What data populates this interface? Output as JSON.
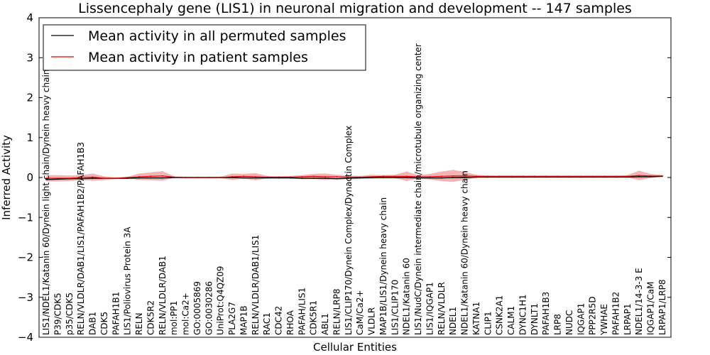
{
  "chart_data": {
    "type": "line",
    "title": "Lissencephaly gene (LIS1) in neuronal migration and development -- 147 samples",
    "xlabel": "Cellular Entities",
    "ylabel": "Inferred Activity",
    "ylim": [
      -4,
      4
    ],
    "yticks": [
      -4,
      -3,
      -2,
      -1,
      0,
      1,
      2,
      3,
      4
    ],
    "ytick_labels": [
      "−4",
      "−3",
      "−2",
      "−1",
      "0",
      "1",
      "2",
      "3",
      "4"
    ],
    "legend_position": "top-left",
    "colors": {
      "permuted": "#000000",
      "patient": "#e00000",
      "band": "#f08080",
      "grey_band": "#bbbbbb"
    },
    "categories": [
      "LIS1/NDEL1/Katanin 60/Dynein light chain/Dynein heavy chain",
      "P39/CDK5",
      "p35/CDK5",
      "RELN/VLDLR/DAB1/LIS1/PAFAH1B2/PAFAH1B3",
      "DAB1",
      "CDK5",
      "PAFAH1B1",
      "LIS1/Poliovirus Protein 3A",
      "RELN",
      "CDK5R2",
      "RELN/VLDLR/DAB1",
      "mol:PP1",
      "mol:Ca2+",
      "GO:0005869",
      "GO:0030286",
      "UniProt:Q4QZ09",
      "PLA2G7",
      "MAP1B",
      "RELN/VLDLR/DAB1/LIS1",
      "RAC1",
      "CDC42",
      "RHOA",
      "PAFAH/LIS1",
      "CDK5R1",
      "ABL1",
      "RELN/LRP8",
      "LIS1/CLIP170/Dynein Complex/Dynactin Complex",
      "CaM/Ca2+",
      "VLDLR",
      "MAP1B/LIS1/Dynein heavy chain",
      "LIS1/CLIP170",
      "NDEL1/Katanin 60",
      "LIS1/NudC/Dynein intermediate chain/microtubule organizing center",
      "LIS1/IQGAP1",
      "RELN/VLDLR",
      "NDEL1",
      "NDEL1/Katanin 60/Dynein heavy chain",
      "KATNA1",
      "CLIP1",
      "CSNK2A1",
      "CALM1",
      "DYNC1H1",
      "DYNLT1",
      "PAFAH1B3",
      "LRP8",
      "NUDC",
      "IQGAP1",
      "PPP2R5D",
      "YWHAE",
      "PAFAH1B2",
      "LRPAP1",
      "NDEL1/14-3-3 E",
      "IQGAP1/CaM",
      "LRPAP1/LRP8"
    ],
    "series": [
      {
        "name": "Mean activity in all permuted samples",
        "color": "#000000",
        "values": [
          -0.05,
          -0.04,
          -0.03,
          -0.03,
          -0.02,
          -0.02,
          -0.02,
          -0.02,
          -0.01,
          -0.01,
          -0.01,
          0,
          0,
          0,
          0,
          0,
          0,
          -0.01,
          -0.01,
          -0.01,
          -0.01,
          -0.01,
          -0.02,
          -0.02,
          -0.02,
          -0.03,
          -0.02,
          -0.01,
          0,
          0,
          0,
          0,
          -0.01,
          -0.01,
          -0.01,
          0,
          0,
          0.01,
          0.01,
          0.01,
          0.01,
          0.01,
          0.01,
          0.01,
          0.01,
          0.01,
          0.01,
          0.01,
          0.01,
          0.01,
          0.01,
          0.02,
          0.02,
          0.03
        ],
        "band": [
          0.03,
          0.03,
          0.03,
          0.03,
          0.02,
          0.02,
          0.02,
          0.02,
          0.02,
          0.02,
          0.02,
          0.02,
          0.02,
          0.02,
          0.02,
          0.02,
          0.02,
          0.02,
          0.02,
          0.02,
          0.02,
          0.02,
          0.03,
          0.03,
          0.03,
          0.03,
          0.03,
          0.03,
          0.03,
          0.03,
          0.03,
          0.03,
          0.03,
          0.03,
          0.03,
          0.03,
          0.02,
          0.02,
          0.02,
          0.02,
          0.02,
          0.02,
          0.02,
          0.02,
          0.02,
          0.02,
          0.02,
          0.02,
          0.02,
          0.02,
          0.02,
          0.02,
          0.02,
          0.02
        ]
      },
      {
        "name": "Mean activity in patient samples",
        "color": "#e00000",
        "values": [
          -0.02,
          -0.02,
          -0.02,
          0,
          0.01,
          -0.02,
          -0.02,
          0,
          0.02,
          0.03,
          0.04,
          0.01,
          0,
          0,
          0,
          0,
          0.02,
          0.03,
          0.02,
          0.01,
          0.01,
          0.01,
          0.02,
          0.03,
          0.02,
          0.02,
          0.01,
          0.01,
          0.02,
          0.03,
          0.03,
          0.03,
          0.02,
          0.02,
          0.03,
          0.04,
          0.04,
          0.03,
          0.03,
          0.03,
          0.03,
          0.03,
          0.03,
          0.03,
          0.03,
          0.03,
          0.03,
          0.03,
          0.03,
          0.03,
          0.03,
          0.05,
          0.04,
          0.04
        ],
        "band": [
          0.08,
          0.08,
          0.07,
          0.06,
          0.09,
          0.05,
          0.02,
          0.02,
          0.08,
          0.1,
          0.12,
          0.02,
          0.02,
          0.02,
          0.02,
          0.02,
          0.08,
          0.06,
          0.09,
          0.03,
          0.02,
          0.03,
          0.04,
          0.06,
          0.08,
          0.05,
          0.04,
          0.03,
          0.05,
          0.03,
          0.04,
          0.12,
          0.04,
          0.07,
          0.12,
          0.15,
          0.1,
          0.04,
          0.02,
          0.02,
          0.02,
          0.02,
          0.02,
          0.02,
          0.02,
          0.02,
          0.02,
          0.02,
          0.02,
          0.02,
          0.03,
          0.12,
          0.05,
          0.02
        ]
      }
    ]
  }
}
